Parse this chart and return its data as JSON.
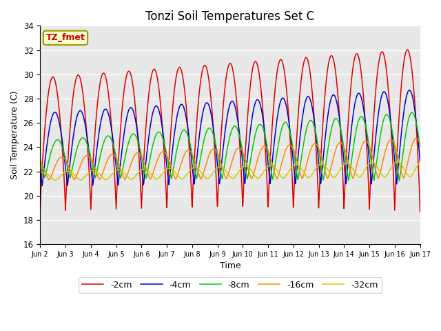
{
  "title": "Tonzi Soil Temperatures Set C",
  "xlabel": "Time",
  "ylabel": "Soil Temperature (C)",
  "ylim": [
    16,
    34
  ],
  "annotation_text": "TZ_fmet",
  "annotation_color": "#cc0000",
  "annotation_bg": "#ffffcc",
  "annotation_border": "#999900",
  "bg_color": "#e8e8e8",
  "series": [
    {
      "label": "-2cm",
      "color": "#dd0000"
    },
    {
      "label": "-4cm",
      "color": "#0000cc"
    },
    {
      "label": "-8cm",
      "color": "#00cc00"
    },
    {
      "label": "-16cm",
      "color": "#ff8800"
    },
    {
      "label": "-32cm",
      "color": "#cccc00"
    }
  ],
  "xtick_labels": [
    "Jun 2",
    "Jun 3",
    "Jun 4",
    "Jun 5",
    "Jun 6",
    "Jun 7",
    "Jun 8",
    "Jun 9",
    "Jun 10",
    "Jun 11",
    "Jun 12",
    "Jun 13",
    "Jun 14",
    "Jun 15",
    "Jun 16",
    "Jun 17"
  ],
  "ytick_vals": [
    16,
    18,
    20,
    22,
    24,
    26,
    28,
    30,
    32,
    34
  ],
  "days": 15,
  "n_points": 1500
}
